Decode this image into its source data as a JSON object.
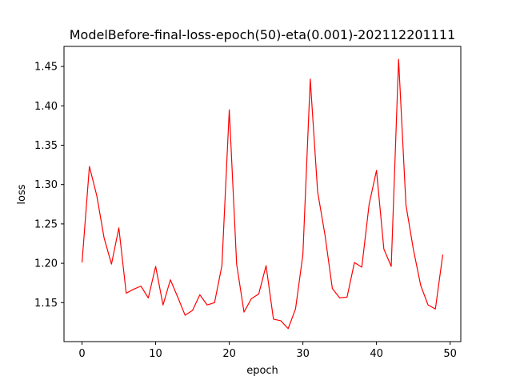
{
  "chart_data": {
    "type": "line",
    "title": "ModelBefore-final-loss-epoch(50)-eta(0.001)-202112201111",
    "xlabel": "epoch",
    "ylabel": "loss",
    "xlim": [
      -2.45,
      51.45
    ],
    "ylim": [
      1.1005,
      1.4755
    ],
    "xticks": [
      0,
      10,
      20,
      30,
      40,
      50
    ],
    "xtick_labels": [
      "0",
      "10",
      "20",
      "30",
      "40",
      "50"
    ],
    "yticks": [
      1.15,
      1.2,
      1.25,
      1.3,
      1.35,
      1.4,
      1.45
    ],
    "ytick_labels": [
      "1.15",
      "1.20",
      "1.25",
      "1.30",
      "1.35",
      "1.40",
      "1.45"
    ],
    "grid": false,
    "series": [
      {
        "color": "#ff0000",
        "x": [
          0,
          1,
          2,
          3,
          4,
          5,
          6,
          7,
          8,
          9,
          10,
          11,
          12,
          13,
          14,
          15,
          16,
          17,
          18,
          19,
          20,
          21,
          22,
          23,
          24,
          25,
          26,
          27,
          28,
          29,
          30,
          31,
          32,
          33,
          34,
          35,
          36,
          37,
          38,
          39,
          40,
          41,
          42,
          43,
          44,
          45,
          46,
          47,
          48,
          49
        ],
        "y": [
          1.201,
          1.323,
          1.286,
          1.232,
          1.199,
          1.245,
          1.162,
          1.167,
          1.171,
          1.156,
          1.196,
          1.147,
          1.179,
          1.157,
          1.134,
          1.14,
          1.16,
          1.147,
          1.15,
          1.197,
          1.395,
          1.199,
          1.138,
          1.155,
          1.161,
          1.197,
          1.129,
          1.127,
          1.117,
          1.142,
          1.211,
          1.434,
          1.291,
          1.236,
          1.168,
          1.156,
          1.157,
          1.201,
          1.195,
          1.275,
          1.318,
          1.218,
          1.196,
          1.459,
          1.274,
          1.218,
          1.172,
          1.147,
          1.142,
          1.211
        ]
      }
    ]
  }
}
